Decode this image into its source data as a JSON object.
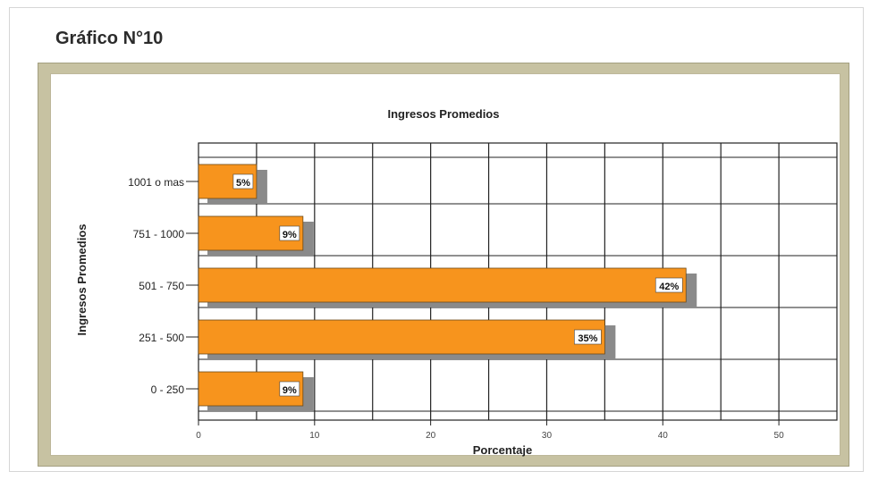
{
  "figure": {
    "title": "Gráfico N°10"
  },
  "colors": {
    "bar": "#f7941d",
    "bar_shadow": "#8a8a8a",
    "frame": "#c7c2a2",
    "grid": "#222222"
  },
  "chart_data": {
    "type": "bar",
    "orientation": "horizontal",
    "title": "Ingresos Promedios",
    "xlabel": "Porcentaje",
    "ylabel": "Ingresos Promedios",
    "categories": [
      "1001 o mas",
      "751 - 1000",
      "501 - 750",
      "251 - 500",
      "0 - 250"
    ],
    "values": [
      5,
      9,
      42,
      35,
      9
    ],
    "data_labels": [
      "5%",
      "9%",
      "42%",
      "35%",
      "9%"
    ],
    "xlim": [
      0,
      55
    ],
    "xticks": [
      0,
      10,
      20,
      30,
      40,
      50
    ],
    "xtick_labels": [
      "0",
      "10",
      "20",
      "30",
      "40",
      "50"
    ],
    "grid": true
  }
}
